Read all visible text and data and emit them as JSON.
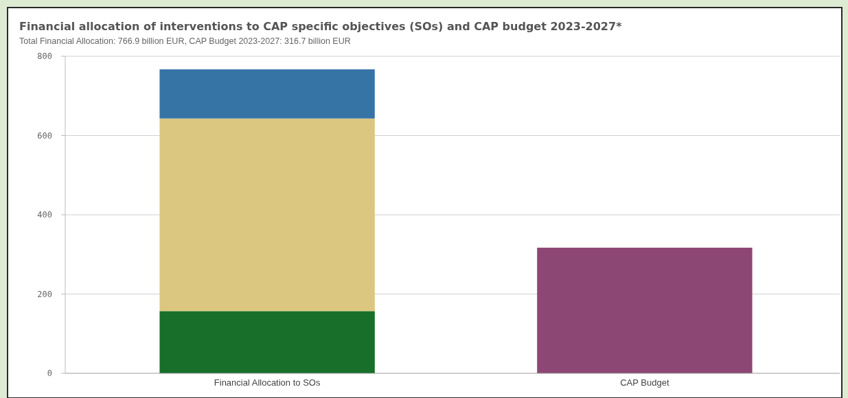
{
  "chart_data": {
    "type": "bar",
    "title": "Financial allocation of interventions to CAP specific objectives (SOs) and CAP budget 2023-2027*",
    "subtitle": "Total Financial Allocation: 766.9 billion EUR, CAP Budget 2023-2027: 316.7 billion EUR",
    "categories": [
      "Financial Allocation to SOs",
      "CAP Budget"
    ],
    "stacked": true,
    "series": [
      {
        "color": "#176f29",
        "values": [
          157,
          null
        ]
      },
      {
        "color": "#dbc77f",
        "values": [
          486,
          null
        ]
      },
      {
        "color": "#3774a6",
        "values": [
          124,
          null
        ]
      },
      {
        "color": "#8d4775",
        "values": [
          null,
          317
        ]
      }
    ],
    "ylim": [
      0,
      800
    ],
    "yticks": [
      0,
      200,
      400,
      600,
      800
    ],
    "grid": "y"
  }
}
